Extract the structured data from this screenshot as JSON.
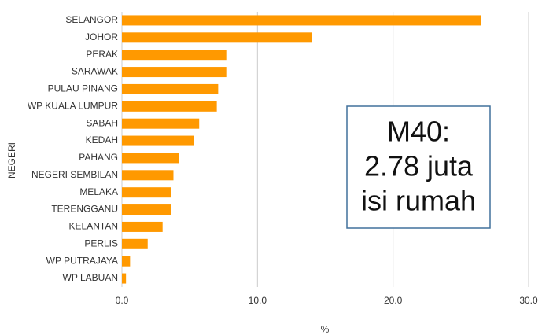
{
  "chart_data": {
    "type": "barh",
    "categories": [
      "SELANGOR",
      "JOHOR",
      "PERAK",
      "SARAWAK",
      "PULAU PINANG",
      "WP KUALA LUMPUR",
      "SABAH",
      "KEDAH",
      "PAHANG",
      "NEGERI SEMBILAN",
      "MELAKA",
      "TERENGGANU",
      "KELANTAN",
      "PERLIS",
      "WP PUTRAJAYA",
      "WP LABUAN"
    ],
    "values": [
      26.5,
      14.0,
      7.7,
      7.7,
      7.1,
      7.0,
      5.7,
      5.3,
      4.2,
      3.8,
      3.6,
      3.6,
      3.0,
      1.9,
      0.6,
      0.3
    ],
    "color": "#ff9900",
    "xlim": [
      0,
      30
    ],
    "xticks": [
      {
        "value": 0,
        "label": "0.0"
      },
      {
        "value": 10,
        "label": "10.0"
      },
      {
        "value": 20,
        "label": "20.0"
      },
      {
        "value": 30,
        "label": "30.0"
      }
    ],
    "grid": true,
    "xlabel": "%",
    "ylabel": "NEGERI",
    "annotation": [
      "M40:",
      "2.78 juta",
      "isi rumah"
    ]
  }
}
